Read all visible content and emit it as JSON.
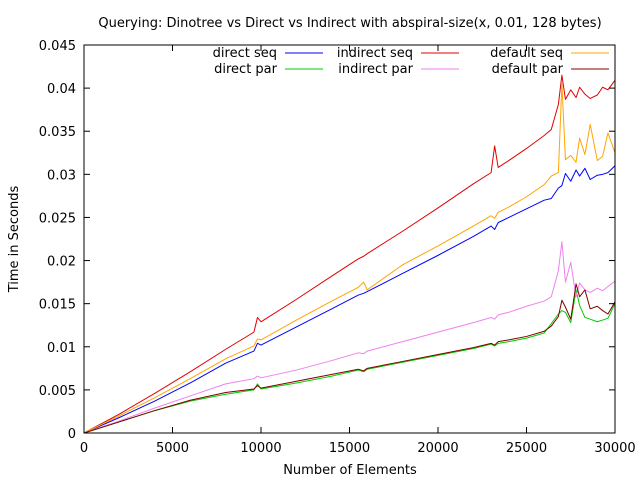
{
  "chart_data": {
    "type": "line",
    "title": "Querying: Dinotree vs Direct vs Indirect with abspiral-size(x, 0.01, 128 bytes)",
    "xlabel": "Number of Elements",
    "ylabel": "Time in Seconds",
    "xlim": [
      0,
      30000
    ],
    "ylim": [
      0,
      0.045
    ],
    "x_ticks": [
      0,
      5000,
      10000,
      15000,
      20000,
      25000,
      30000
    ],
    "x_tick_labels": [
      "0",
      "5000",
      "10000",
      "15000",
      "20000",
      "25000",
      "30000"
    ],
    "y_ticks": [
      0,
      0.005,
      0.01,
      0.015,
      0.02,
      0.025,
      0.03,
      0.035,
      0.04,
      0.045
    ],
    "y_tick_labels": [
      "0",
      "0.005",
      "0.01",
      "0.015",
      "0.02",
      "0.025",
      "0.03",
      "0.035",
      "0.04",
      "0.045"
    ],
    "grid": false,
    "legend_position": "top",
    "x": [
      0,
      2000,
      4000,
      6000,
      8000,
      9600,
      9800,
      10000,
      12000,
      14000,
      15500,
      15800,
      16000,
      18000,
      20000,
      22000,
      23000,
      23200,
      23400,
      24000,
      25000,
      26000,
      26400,
      26800,
      27000,
      27200,
      27500,
      27800,
      28000,
      28300,
      28600,
      29000,
      29300,
      29600,
      30000
    ],
    "series": [
      {
        "name": "direct seq",
        "color": "#0000ff",
        "values": [
          0,
          0.0018,
          0.0037,
          0.0058,
          0.0081,
          0.0095,
          0.0104,
          0.0102,
          0.0123,
          0.0144,
          0.016,
          0.0162,
          0.0164,
          0.0185,
          0.0206,
          0.0228,
          0.024,
          0.0236,
          0.0244,
          0.025,
          0.026,
          0.027,
          0.0272,
          0.0284,
          0.0287,
          0.0301,
          0.0292,
          0.0305,
          0.0298,
          0.0307,
          0.0294,
          0.0299,
          0.03,
          0.0302,
          0.031
        ]
      },
      {
        "name": "direct par",
        "color": "#00cc00",
        "values": [
          0,
          0.0013,
          0.0026,
          0.0037,
          0.0045,
          0.005,
          0.0057,
          0.0051,
          0.0058,
          0.0066,
          0.0073,
          0.0071,
          0.0074,
          0.0082,
          0.009,
          0.0098,
          0.0103,
          0.0101,
          0.0104,
          0.0106,
          0.011,
          0.0116,
          0.0127,
          0.0138,
          0.0142,
          0.014,
          0.0128,
          0.0166,
          0.0148,
          0.0134,
          0.0132,
          0.0129,
          0.0131,
          0.0133,
          0.015
        ]
      },
      {
        "name": "indirect seq",
        "color": "#e00000",
        "values": [
          0,
          0.0022,
          0.0046,
          0.0071,
          0.0097,
          0.0117,
          0.0134,
          0.0129,
          0.0155,
          0.0182,
          0.0202,
          0.0205,
          0.0208,
          0.0234,
          0.0261,
          0.0289,
          0.0302,
          0.0333,
          0.0308,
          0.0316,
          0.033,
          0.0345,
          0.0352,
          0.0381,
          0.0415,
          0.0387,
          0.0398,
          0.0389,
          0.0401,
          0.0393,
          0.0388,
          0.0392,
          0.0401,
          0.0398,
          0.0409
        ]
      },
      {
        "name": "indirect par",
        "color": "#ee82ee",
        "values": [
          0,
          0.0014,
          0.0029,
          0.0043,
          0.0057,
          0.0063,
          0.0066,
          0.0064,
          0.0073,
          0.0084,
          0.0093,
          0.0092,
          0.0095,
          0.0106,
          0.0117,
          0.0128,
          0.0134,
          0.0132,
          0.0137,
          0.014,
          0.0147,
          0.0153,
          0.0158,
          0.0188,
          0.0222,
          0.0175,
          0.0198,
          0.0158,
          0.0174,
          0.0166,
          0.0163,
          0.0168,
          0.0165,
          0.017,
          0.0176
        ]
      },
      {
        "name": "default seq",
        "color": "#ffa500",
        "values": [
          0,
          0.002,
          0.0041,
          0.0063,
          0.0086,
          0.0101,
          0.0109,
          0.0108,
          0.0131,
          0.0153,
          0.0169,
          0.0175,
          0.0166,
          0.0195,
          0.0217,
          0.024,
          0.0252,
          0.0249,
          0.0256,
          0.0262,
          0.0274,
          0.0288,
          0.0298,
          0.0302,
          0.0405,
          0.0317,
          0.0322,
          0.0314,
          0.0342,
          0.0323,
          0.0358,
          0.0316,
          0.0321,
          0.0348,
          0.0325
        ]
      },
      {
        "name": "default par",
        "color": "#800000",
        "values": [
          0,
          0.0013,
          0.0026,
          0.0038,
          0.0047,
          0.0051,
          0.0055,
          0.0052,
          0.006,
          0.0068,
          0.0074,
          0.0072,
          0.0075,
          0.0083,
          0.0091,
          0.0099,
          0.0104,
          0.0102,
          0.0106,
          0.0108,
          0.0112,
          0.0118,
          0.0124,
          0.0135,
          0.0154,
          0.0146,
          0.0132,
          0.0173,
          0.0158,
          0.0166,
          0.0144,
          0.0147,
          0.0142,
          0.0138,
          0.0152
        ]
      }
    ]
  }
}
